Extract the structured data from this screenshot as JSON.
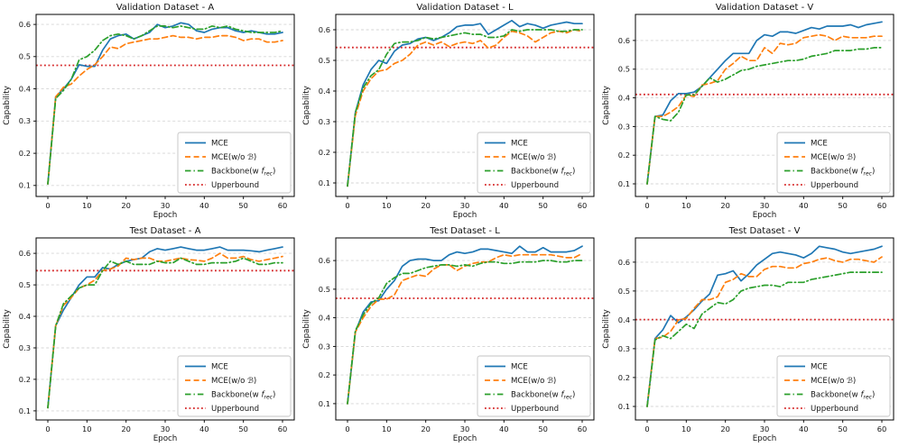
{
  "figure": {
    "background": "#ffffff",
    "xlabel": "Epoch",
    "ylabel": "Capability",
    "xlim": [
      -3,
      63
    ],
    "xticks": [
      0,
      10,
      20,
      30,
      40,
      50,
      60
    ],
    "yticks": [
      0.1,
      0.2,
      0.3,
      0.4,
      0.5,
      0.6
    ],
    "grid": "horizontal-dashed",
    "legend_position": "lower-right",
    "legend": [
      {
        "key": "mce",
        "color": "#1f77b4",
        "style": "solid",
        "label_text": "MCE",
        "label_parts": [
          {
            "t": "MCE"
          }
        ]
      },
      {
        "key": "mce-wo-b",
        "color": "#ff7f0e",
        "style": "dashed",
        "label_text": "MCE(w/o ℬ)",
        "label_parts": [
          {
            "t": "MCE(w/o "
          },
          {
            "t": "ℬ",
            "i": true
          },
          {
            "t": ")"
          }
        ]
      },
      {
        "key": "backbone-w-frec",
        "color": "#2ca02c",
        "style": "dashdot",
        "label_text": "Backbone(w f_rec)",
        "label_parts": [
          {
            "t": "Backbone(w "
          },
          {
            "t": "f",
            "i": true
          },
          {
            "t": "rec",
            "i": true,
            "sub": true
          },
          {
            "t": ")"
          }
        ]
      },
      {
        "key": "upperbound",
        "color": "#d62728",
        "style": "dotted",
        "label_text": "Upperbound",
        "label_parts": [
          {
            "t": "Upperbound"
          }
        ]
      }
    ]
  },
  "chart_data": [
    {
      "type": "line",
      "title": "Validation Dataset - A",
      "xlabel": "Epoch",
      "ylabel": "Capability",
      "x_start": 0,
      "x_step": 2,
      "ylim": [
        0.066,
        0.631
      ],
      "upperbound": 0.473,
      "series": [
        {
          "name": "MCE",
          "values": [
            0.105,
            0.375,
            0.4,
            0.43,
            0.475,
            0.47,
            0.47,
            0.52,
            0.555,
            0.565,
            0.57,
            0.555,
            0.565,
            0.575,
            0.6,
            0.59,
            0.595,
            0.605,
            0.6,
            0.58,
            0.575,
            0.585,
            0.59,
            0.59,
            0.58,
            0.575,
            0.58,
            0.575,
            0.57,
            0.57,
            0.575
          ]
        },
        {
          "name": "MCE(w/o ℬ)",
          "values": [
            0.105,
            0.375,
            0.405,
            0.415,
            0.44,
            0.46,
            0.475,
            0.5,
            0.53,
            0.525,
            0.54,
            0.545,
            0.55,
            0.555,
            0.555,
            0.56,
            0.565,
            0.56,
            0.56,
            0.555,
            0.56,
            0.56,
            0.565,
            0.565,
            0.56,
            0.55,
            0.555,
            0.555,
            0.545,
            0.545,
            0.55
          ]
        },
        {
          "name": "Backbone(w f_rec)",
          "values": [
            0.105,
            0.37,
            0.395,
            0.43,
            0.49,
            0.5,
            0.52,
            0.55,
            0.565,
            0.57,
            0.565,
            0.555,
            0.565,
            0.58,
            0.595,
            0.595,
            0.59,
            0.595,
            0.59,
            0.585,
            0.585,
            0.595,
            0.59,
            0.595,
            0.585,
            0.58,
            0.575,
            0.575,
            0.575,
            0.575,
            0.58
          ]
        }
      ]
    },
    {
      "type": "line",
      "title": "Validation Dataset - L",
      "xlabel": "Epoch",
      "ylabel": "Capability",
      "x_start": 0,
      "x_step": 2,
      "ylim": [
        0.056,
        0.65
      ],
      "upperbound": 0.542,
      "series": [
        {
          "name": "MCE",
          "values": [
            0.09,
            0.33,
            0.42,
            0.47,
            0.5,
            0.49,
            0.53,
            0.55,
            0.555,
            0.57,
            0.575,
            0.565,
            0.575,
            0.59,
            0.61,
            0.615,
            0.615,
            0.62,
            0.585,
            0.6,
            0.615,
            0.63,
            0.61,
            0.62,
            0.615,
            0.605,
            0.615,
            0.62,
            0.625,
            0.62,
            0.62
          ]
        },
        {
          "name": "MCE(w/o ℬ)",
          "values": [
            0.09,
            0.32,
            0.4,
            0.44,
            0.465,
            0.47,
            0.49,
            0.5,
            0.52,
            0.55,
            0.56,
            0.55,
            0.56,
            0.545,
            0.555,
            0.56,
            0.555,
            0.565,
            0.54,
            0.55,
            0.575,
            0.595,
            0.59,
            0.58,
            0.56,
            0.575,
            0.59,
            0.595,
            0.59,
            0.6,
            0.595
          ]
        },
        {
          "name": "Backbone(w f_rec)",
          "values": [
            0.09,
            0.33,
            0.41,
            0.45,
            0.47,
            0.52,
            0.555,
            0.56,
            0.56,
            0.565,
            0.575,
            0.57,
            0.575,
            0.58,
            0.585,
            0.59,
            0.585,
            0.585,
            0.575,
            0.575,
            0.58,
            0.6,
            0.595,
            0.6,
            0.6,
            0.6,
            0.6,
            0.595,
            0.595,
            0.6,
            0.6
          ]
        }
      ]
    },
    {
      "type": "line",
      "title": "Validation Dataset - V",
      "xlabel": "Epoch",
      "ylabel": "Capability",
      "x_start": 0,
      "x_step": 2,
      "ylim": [
        0.056,
        0.691
      ],
      "upperbound": 0.412,
      "series": [
        {
          "name": "MCE",
          "values": [
            0.1,
            0.335,
            0.34,
            0.39,
            0.415,
            0.415,
            0.42,
            0.44,
            0.47,
            0.5,
            0.53,
            0.555,
            0.555,
            0.555,
            0.6,
            0.62,
            0.615,
            0.63,
            0.63,
            0.625,
            0.635,
            0.645,
            0.64,
            0.65,
            0.65,
            0.65,
            0.655,
            0.645,
            0.655,
            0.66,
            0.665
          ]
        },
        {
          "name": "MCE(w/o ℬ)",
          "values": [
            0.1,
            0.335,
            0.335,
            0.35,
            0.37,
            0.41,
            0.405,
            0.445,
            0.45,
            0.46,
            0.5,
            0.52,
            0.545,
            0.53,
            0.53,
            0.575,
            0.555,
            0.59,
            0.585,
            0.59,
            0.61,
            0.615,
            0.62,
            0.615,
            0.6,
            0.615,
            0.61,
            0.61,
            0.61,
            0.615,
            0.615
          ]
        },
        {
          "name": "Backbone(w f_rec)",
          "values": [
            0.1,
            0.335,
            0.325,
            0.32,
            0.35,
            0.41,
            0.41,
            0.44,
            0.47,
            0.455,
            0.465,
            0.48,
            0.495,
            0.5,
            0.51,
            0.515,
            0.52,
            0.525,
            0.53,
            0.53,
            0.535,
            0.545,
            0.55,
            0.555,
            0.565,
            0.565,
            0.565,
            0.57,
            0.57,
            0.575,
            0.575
          ]
        }
      ]
    },
    {
      "type": "line",
      "title": "Test Dataset - A",
      "xlabel": "Epoch",
      "ylabel": "Capability",
      "x_start": 0,
      "x_step": 2,
      "ylim": [
        0.071,
        0.649
      ],
      "upperbound": 0.545,
      "series": [
        {
          "name": "MCE",
          "values": [
            0.11,
            0.37,
            0.42,
            0.46,
            0.5,
            0.525,
            0.525,
            0.555,
            0.55,
            0.565,
            0.575,
            0.58,
            0.585,
            0.605,
            0.615,
            0.61,
            0.615,
            0.62,
            0.615,
            0.61,
            0.61,
            0.615,
            0.62,
            0.61,
            0.61,
            0.61,
            0.608,
            0.605,
            0.61,
            0.615,
            0.62
          ]
        },
        {
          "name": "MCE(w/o ℬ)",
          "values": [
            0.11,
            0.37,
            0.435,
            0.46,
            0.49,
            0.5,
            0.515,
            0.545,
            0.55,
            0.56,
            0.585,
            0.58,
            0.585,
            0.585,
            0.575,
            0.575,
            0.58,
            0.585,
            0.58,
            0.578,
            0.575,
            0.585,
            0.6,
            0.585,
            0.585,
            0.59,
            0.58,
            0.575,
            0.58,
            0.585,
            0.59
          ]
        },
        {
          "name": "Backbone(w f_rec)",
          "values": [
            0.11,
            0.37,
            0.44,
            0.465,
            0.49,
            0.5,
            0.5,
            0.545,
            0.575,
            0.565,
            0.575,
            0.565,
            0.565,
            0.565,
            0.575,
            0.57,
            0.57,
            0.585,
            0.575,
            0.565,
            0.565,
            0.57,
            0.57,
            0.57,
            0.575,
            0.585,
            0.575,
            0.565,
            0.565,
            0.57,
            0.57
          ]
        }
      ]
    },
    {
      "type": "line",
      "title": "Test Dataset - L",
      "xlabel": "Epoch",
      "ylabel": "Capability",
      "x_start": 0,
      "x_step": 2,
      "ylim": [
        0.043,
        0.679
      ],
      "upperbound": 0.468,
      "series": [
        {
          "name": "MCE",
          "values": [
            0.1,
            0.35,
            0.42,
            0.455,
            0.46,
            0.5,
            0.53,
            0.58,
            0.6,
            0.605,
            0.605,
            0.6,
            0.6,
            0.62,
            0.63,
            0.625,
            0.63,
            0.64,
            0.64,
            0.635,
            0.63,
            0.625,
            0.65,
            0.63,
            0.63,
            0.645,
            0.63,
            0.63,
            0.63,
            0.635,
            0.65
          ]
        },
        {
          "name": "MCE(w/o ℬ)",
          "values": [
            0.1,
            0.35,
            0.4,
            0.44,
            0.465,
            0.465,
            0.48,
            0.53,
            0.54,
            0.55,
            0.545,
            0.57,
            0.585,
            0.585,
            0.565,
            0.58,
            0.59,
            0.595,
            0.595,
            0.61,
            0.62,
            0.615,
            0.62,
            0.62,
            0.62,
            0.62,
            0.62,
            0.615,
            0.61,
            0.61,
            0.625
          ]
        },
        {
          "name": "Backbone(w f_rec)",
          "values": [
            0.1,
            0.355,
            0.41,
            0.45,
            0.47,
            0.52,
            0.54,
            0.555,
            0.555,
            0.565,
            0.575,
            0.58,
            0.585,
            0.585,
            0.58,
            0.585,
            0.58,
            0.59,
            0.595,
            0.595,
            0.59,
            0.59,
            0.595,
            0.595,
            0.595,
            0.6,
            0.6,
            0.595,
            0.595,
            0.6,
            0.6
          ]
        }
      ]
    },
    {
      "type": "line",
      "title": "Test Dataset - V",
      "xlabel": "Epoch",
      "ylabel": "Capability",
      "x_start": 0,
      "x_step": 2,
      "ylim": [
        0.053,
        0.684
      ],
      "upperbound": 0.401,
      "series": [
        {
          "name": "MCE",
          "values": [
            0.1,
            0.335,
            0.365,
            0.415,
            0.39,
            0.41,
            0.435,
            0.465,
            0.49,
            0.555,
            0.56,
            0.57,
            0.535,
            0.56,
            0.59,
            0.61,
            0.63,
            0.635,
            0.63,
            0.625,
            0.615,
            0.63,
            0.655,
            0.65,
            0.645,
            0.635,
            0.63,
            0.635,
            0.64,
            0.645,
            0.655
          ]
        },
        {
          "name": "MCE(w/o ℬ)",
          "values": [
            0.1,
            0.335,
            0.34,
            0.36,
            0.4,
            0.405,
            0.44,
            0.47,
            0.47,
            0.48,
            0.53,
            0.54,
            0.56,
            0.55,
            0.55,
            0.575,
            0.585,
            0.585,
            0.58,
            0.58,
            0.595,
            0.6,
            0.61,
            0.615,
            0.605,
            0.6,
            0.61,
            0.61,
            0.605,
            0.6,
            0.618
          ]
        },
        {
          "name": "Backbone(w f_rec)",
          "values": [
            0.1,
            0.33,
            0.345,
            0.335,
            0.36,
            0.385,
            0.37,
            0.42,
            0.44,
            0.46,
            0.455,
            0.47,
            0.5,
            0.51,
            0.515,
            0.52,
            0.52,
            0.515,
            0.53,
            0.53,
            0.53,
            0.54,
            0.545,
            0.55,
            0.555,
            0.56,
            0.565,
            0.565,
            0.565,
            0.565,
            0.565
          ]
        }
      ]
    }
  ]
}
